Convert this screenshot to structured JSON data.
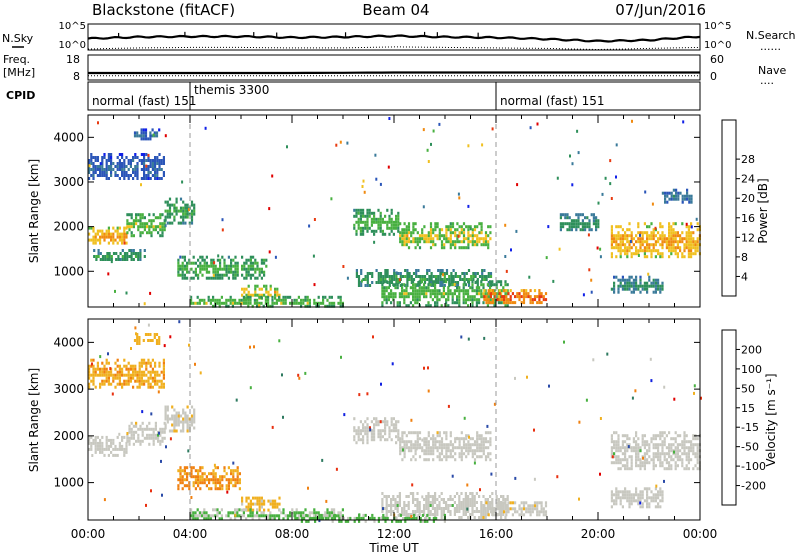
{
  "header": {
    "station": "Blackstone (fitACF)",
    "beam": "Beam 04",
    "date": "07/Jun/2016"
  },
  "left_labels": {
    "nsky": "N.Sky",
    "freq_line1": "Freq.",
    "freq_line2": "[MHz]",
    "cpid": "CPID"
  },
  "right_labels": {
    "nsearch": "N.Search",
    "nave": "Nave"
  },
  "noise_ticks": {
    "top": "10^5",
    "bottom": "10^0"
  },
  "freq_ticks": {
    "top": "18",
    "bottom": "8"
  },
  "nave_ticks": {
    "top": "60",
    "bottom": "0"
  },
  "cpid_segments": [
    {
      "label": "normal (fast) 151",
      "start": 0,
      "end": 4
    },
    {
      "label": "themis 3300",
      "start": 4,
      "end": 16
    },
    {
      "label": "normal (fast) 151",
      "start": 16,
      "end": 24
    }
  ],
  "xaxis": {
    "title": "Time UT",
    "ticks": [
      "00:00",
      "04:00",
      "08:00",
      "12:00",
      "16:00",
      "20:00",
      "00:00"
    ]
  },
  "yaxis": {
    "title": "Slant Range [km]",
    "ticks": [
      "1000",
      "2000",
      "3000",
      "4000"
    ]
  },
  "power_scale": {
    "title": "Power [dB]",
    "labels": [
      "4",
      "8",
      "12",
      "16",
      "20",
      "24",
      "28"
    ],
    "colors": [
      "#1020e8",
      "#2a55b8",
      "#3a7a9a",
      "#2e8f5a",
      "#48b040",
      "#f0c020",
      "#f08a10",
      "#e83a10",
      "#e00000"
    ]
  },
  "velocity_scale": {
    "title": "Velocity [m s⁻¹]",
    "labels": [
      "200",
      "100",
      "50",
      "15",
      "-15",
      "-50",
      "-100",
      "-200"
    ],
    "colors": [
      "#1020e0",
      "#2a4aa8",
      "#2e7a60",
      "#48b040",
      "#c8c8c0",
      "#f0b020",
      "#f08010",
      "#e83010",
      "#e00000"
    ]
  },
  "chart_data": [
    {
      "type": "line",
      "title": "N.Sky / N.Search",
      "x": [
        0,
        2,
        4,
        6,
        8,
        10,
        12,
        14,
        16,
        18,
        20,
        22,
        24
      ],
      "series": [
        {
          "name": "N.Sky",
          "values": [
            2.2,
            2.5,
            2.6,
            2.6,
            2.4,
            2.5,
            2.7,
            2.5,
            2.4,
            2.1,
            1.7,
            1.9,
            2.6
          ]
        },
        {
          "name": "N.Search",
          "values": [
            0.2,
            0.4,
            0.5,
            0.5,
            0.4,
            0.4,
            0.6,
            0.5,
            0.4,
            0.3,
            0.1,
            0.3,
            0.5
          ]
        }
      ],
      "xlim": [
        0,
        24
      ],
      "ylim": [
        0,
        5
      ]
    },
    {
      "type": "line",
      "title": "Freq. [MHz] / Nave",
      "x": [
        0,
        4,
        8,
        12,
        16,
        20,
        24
      ],
      "series": [
        {
          "name": "Freq.",
          "values": [
            10.8,
            10.8,
            10.8,
            11,
            11,
            11,
            11
          ]
        },
        {
          "name": "Nave",
          "values": [
            10,
            10,
            10,
            10,
            10,
            10,
            10
          ]
        }
      ],
      "xlim": [
        0,
        24
      ],
      "ylim": [
        8,
        18
      ]
    },
    {
      "type": "heatmap",
      "title": "Power [dB]",
      "xlabel": "Time UT",
      "ylabel": "Slant Range [km]",
      "xlim": [
        0,
        24
      ],
      "ylim": [
        200,
        4500
      ],
      "zlim": [
        0,
        30
      ],
      "regions": [
        {
          "t0": 0.0,
          "t1": 3.0,
          "r0": 3050,
          "r1": 3650,
          "value": 6
        },
        {
          "t0": 1.8,
          "t1": 2.8,
          "r0": 3950,
          "r1": 4200,
          "value": 6
        },
        {
          "t0": 0.0,
          "t1": 1.5,
          "r0": 1600,
          "r1": 2000,
          "value": 20
        },
        {
          "t0": 1.5,
          "t1": 3.0,
          "r0": 1800,
          "r1": 2300,
          "value": 15
        },
        {
          "t0": 3.0,
          "t1": 4.2,
          "r0": 2100,
          "r1": 2650,
          "value": 13
        },
        {
          "t0": 0.2,
          "t1": 2.2,
          "r0": 1250,
          "r1": 1500,
          "value": 12
        },
        {
          "t0": 3.5,
          "t1": 7.0,
          "r0": 850,
          "r1": 1350,
          "value": 14
        },
        {
          "t0": 6.0,
          "t1": 7.5,
          "r0": 400,
          "r1": 700,
          "value": 18
        },
        {
          "t0": 4.0,
          "t1": 10.0,
          "r0": 220,
          "r1": 450,
          "value": 15
        },
        {
          "t0": 10.4,
          "t1": 12.2,
          "r0": 1850,
          "r1": 2400,
          "value": 14
        },
        {
          "t0": 12.2,
          "t1": 15.8,
          "r0": 1500,
          "r1": 2100,
          "value": 17
        },
        {
          "t0": 10.5,
          "t1": 15.8,
          "r0": 700,
          "r1": 1050,
          "value": 12
        },
        {
          "t0": 11.5,
          "t1": 16.5,
          "r0": 250,
          "r1": 800,
          "value": 15
        },
        {
          "t0": 15.5,
          "t1": 18.0,
          "r0": 280,
          "r1": 600,
          "value": 24
        },
        {
          "t0": 18.5,
          "t1": 20.0,
          "r0": 1900,
          "r1": 2300,
          "value": 11
        },
        {
          "t0": 20.5,
          "t1": 24.0,
          "r0": 1300,
          "r1": 2100,
          "value": 20
        },
        {
          "t0": 22.5,
          "t1": 23.7,
          "r0": 2550,
          "r1": 2850,
          "value": 8
        },
        {
          "t0": 20.5,
          "t1": 22.5,
          "r0": 500,
          "r1": 900,
          "value": 10
        }
      ]
    },
    {
      "type": "heatmap",
      "title": "Velocity [m s-1]",
      "xlabel": "Time UT",
      "ylabel": "Slant Range [km]",
      "xlim": [
        0,
        24
      ],
      "ylim": [
        200,
        4500
      ],
      "zlim": [
        -200,
        200
      ],
      "regions": [
        {
          "t0": 0.0,
          "t1": 3.0,
          "r0": 3050,
          "r1": 3650,
          "value": -60
        },
        {
          "t0": 1.8,
          "t1": 2.8,
          "r0": 3950,
          "r1": 4200,
          "value": -50
        },
        {
          "t0": 0.0,
          "t1": 1.5,
          "r0": 1600,
          "r1": 2000,
          "value": 0
        },
        {
          "t0": 1.5,
          "t1": 3.0,
          "r0": 1800,
          "r1": 2300,
          "value": 0
        },
        {
          "t0": 3.0,
          "t1": 4.2,
          "r0": 2100,
          "r1": 2650,
          "value": -5
        },
        {
          "t0": 3.5,
          "t1": 6.0,
          "r0": 850,
          "r1": 1350,
          "value": -80
        },
        {
          "t0": 6.0,
          "t1": 7.5,
          "r0": 400,
          "r1": 700,
          "value": -40
        },
        {
          "t0": 4.0,
          "t1": 10.0,
          "r0": 220,
          "r1": 450,
          "value": 30
        },
        {
          "t0": 10.4,
          "t1": 12.2,
          "r0": 1850,
          "r1": 2400,
          "value": 0
        },
        {
          "t0": 12.2,
          "t1": 15.8,
          "r0": 1500,
          "r1": 2100,
          "value": 0
        },
        {
          "t0": 11.5,
          "t1": 16.5,
          "r0": 250,
          "r1": 800,
          "value": 0
        },
        {
          "t0": 15.5,
          "t1": 18.0,
          "r0": 280,
          "r1": 600,
          "value": -5
        },
        {
          "t0": 20.5,
          "t1": 24.0,
          "r0": 1300,
          "r1": 2100,
          "value": 0
        },
        {
          "t0": 20.5,
          "t1": 22.5,
          "r0": 500,
          "r1": 900,
          "value": 0
        },
        {
          "t0": 8.0,
          "t1": 14.0,
          "r0": 200,
          "r1": 330,
          "value": 40
        }
      ]
    }
  ]
}
